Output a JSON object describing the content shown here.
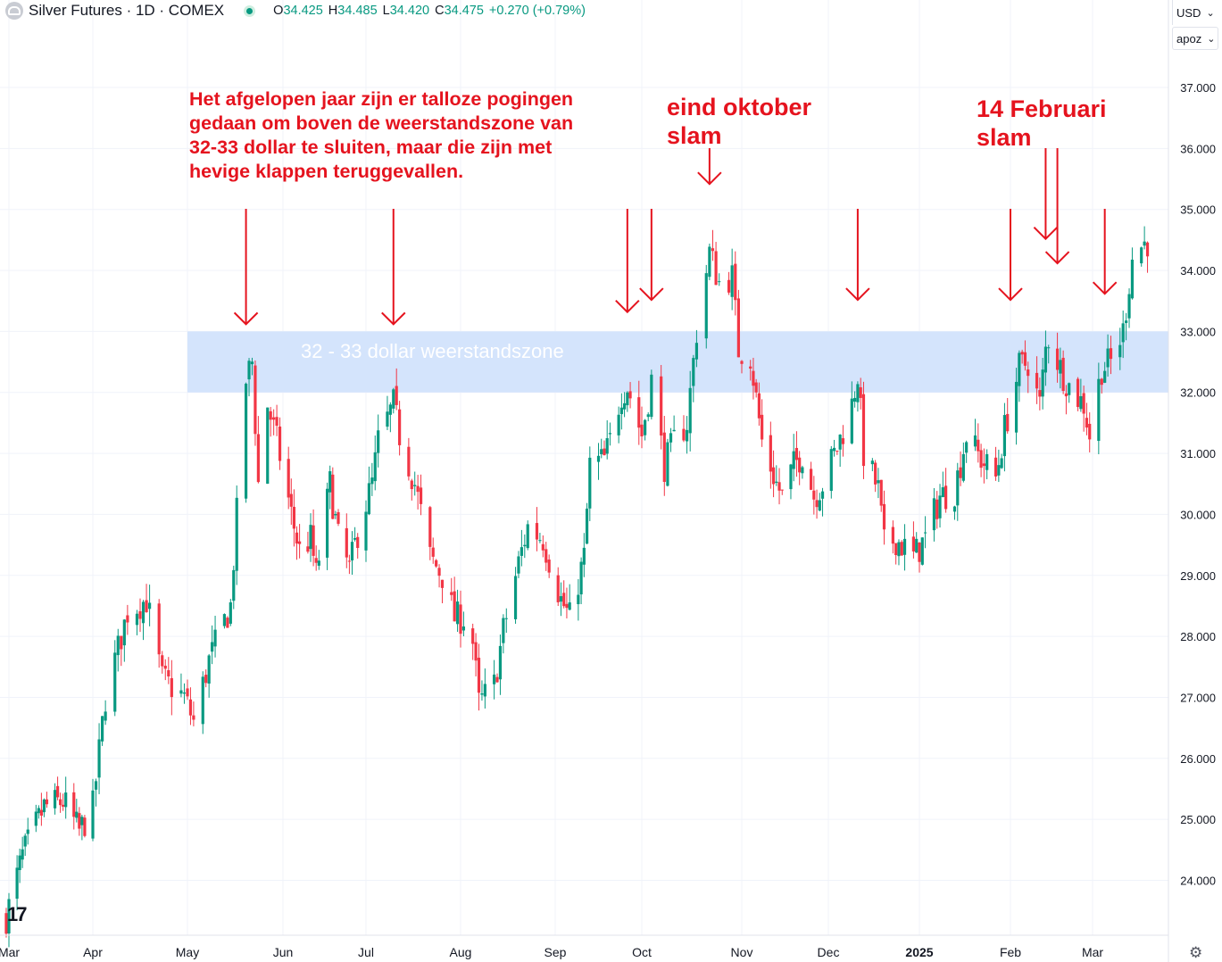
{
  "header": {
    "symbol": "Silver Futures · 1D · COMEX",
    "open_label": "O",
    "open_value": "34.425",
    "high_label": "H",
    "high_value": "34.485",
    "low_label": "L",
    "low_value": "34.420",
    "close_label": "C",
    "close_value": "34.475",
    "change": "+0.270 (+0.79%)"
  },
  "price_scale": {
    "currency": "USD",
    "currency_chevron": "⌄",
    "scale_mode": "apoz",
    "scale_chevron": "⌄"
  },
  "annotations": {
    "main_note": "Het afgelopen jaar zijn er talloze pogingen\ngedaan om boven de weerstandszone van\n32-33 dollar te sluiten, maar die zijn met\nhevige klappen teruggevallen.",
    "october_note": "eind oktober\nslam",
    "february_note": "14 Februari\nslam",
    "zone_label": "32 - 33 dollar weerstandszone"
  },
  "logo_text": "17",
  "settings_icon": "gear-icon",
  "colors": {
    "up": "#089981",
    "down": "#f23645",
    "zone": "#d4e4fc",
    "annotation": "#e5131e",
    "grid": "#f0f3fa"
  },
  "chart_data": {
    "type": "candlestick",
    "title": "",
    "ylim": [
      23.0,
      38.0
    ],
    "y_ticks": [
      "24.000",
      "25.000",
      "26.000",
      "27.000",
      "28.000",
      "29.000",
      "30.000",
      "31.000",
      "32.000",
      "33.000",
      "34.000",
      "35.000",
      "36.000",
      "37.000"
    ],
    "x_labels": [
      "Mar",
      "Apr",
      "May",
      "Jun",
      "Jul",
      "Aug",
      "Sep",
      "Oct",
      "Nov",
      "Dec",
      "2025",
      "Feb",
      "Mar"
    ],
    "resistance_zone": [
      32.0,
      33.0
    ],
    "arrow_targets": [
      [
        "2024-05-20",
        33.0
      ],
      [
        "2024-07-10",
        33.0
      ],
      [
        "2024-09-26",
        33.2
      ],
      [
        "2024-10-04",
        33.4
      ],
      [
        "2024-10-22",
        35.3
      ],
      [
        "2024-12-11",
        33.4
      ],
      [
        "2025-02-01",
        33.4
      ],
      [
        "2025-02-13",
        34.4
      ],
      [
        "2025-02-17",
        34.0
      ],
      [
        "2025-03-05",
        33.5
      ]
    ],
    "waypoints": [
      [
        "2024-02-29",
        23.4
      ],
      [
        "2024-03-06",
        24.4
      ],
      [
        "2024-03-14",
        25.2
      ],
      [
        "2024-03-21",
        25.3
      ],
      [
        "2024-03-27",
        24.8
      ],
      [
        "2024-04-01",
        25.2
      ],
      [
        "2024-04-05",
        27.0
      ],
      [
        "2024-04-12",
        28.4
      ],
      [
        "2024-04-18",
        28.6
      ],
      [
        "2024-04-23",
        27.3
      ],
      [
        "2024-04-30",
        27.0
      ],
      [
        "2024-05-03",
        26.6
      ],
      [
        "2024-05-08",
        27.6
      ],
      [
        "2024-05-15",
        28.5
      ],
      [
        "2024-05-17",
        30.0
      ],
      [
        "2024-05-20",
        32.2
      ],
      [
        "2024-05-22",
        32.5
      ],
      [
        "2024-05-24",
        30.5
      ],
      [
        "2024-05-27",
        31.8
      ],
      [
        "2024-05-30",
        31.2
      ],
      [
        "2024-06-04",
        30.0
      ],
      [
        "2024-06-07",
        29.4
      ],
      [
        "2024-06-11",
        29.6
      ],
      [
        "2024-06-13",
        29.0
      ],
      [
        "2024-06-18",
        30.5
      ],
      [
        "2024-06-21",
        29.6
      ],
      [
        "2024-06-25",
        29.1
      ],
      [
        "2024-06-28",
        29.7
      ],
      [
        "2024-07-03",
        30.5
      ],
      [
        "2024-07-05",
        31.2
      ],
      [
        "2024-07-10",
        31.8
      ],
      [
        "2024-07-12",
        31.3
      ],
      [
        "2024-07-17",
        30.5
      ],
      [
        "2024-07-22",
        29.3
      ],
      [
        "2024-07-26",
        29.0
      ],
      [
        "2024-07-30",
        28.3
      ],
      [
        "2024-08-02",
        28.3
      ],
      [
        "2024-08-05",
        27.9
      ],
      [
        "2024-08-07",
        26.9
      ],
      [
        "2024-08-12",
        27.2
      ],
      [
        "2024-08-15",
        28.1
      ],
      [
        "2024-08-20",
        29.2
      ],
      [
        "2024-08-23",
        29.8
      ],
      [
        "2024-08-28",
        29.6
      ],
      [
        "2024-09-03",
        28.6
      ],
      [
        "2024-09-06",
        28.3
      ],
      [
        "2024-09-11",
        29.3
      ],
      [
        "2024-09-13",
        30.8
      ],
      [
        "2024-09-18",
        30.9
      ],
      [
        "2024-09-20",
        31.2
      ],
      [
        "2024-09-24",
        32.0
      ],
      [
        "2024-09-26",
        32.1
      ],
      [
        "2024-10-01",
        31.3
      ],
      [
        "2024-10-04",
        32.2
      ],
      [
        "2024-10-08",
        30.8
      ],
      [
        "2024-10-11",
        31.2
      ],
      [
        "2024-10-15",
        31.5
      ],
      [
        "2024-10-18",
        33.0
      ],
      [
        "2024-10-22",
        34.3
      ],
      [
        "2024-10-25",
        33.8
      ],
      [
        "2024-10-29",
        33.9
      ],
      [
        "2024-10-31",
        32.7
      ],
      [
        "2024-11-04",
        32.6
      ],
      [
        "2024-11-08",
        31.2
      ],
      [
        "2024-11-13",
        30.5
      ],
      [
        "2024-11-15",
        30.3
      ],
      [
        "2024-11-19",
        30.8
      ],
      [
        "2024-11-22",
        31.0
      ],
      [
        "2024-11-26",
        30.3
      ],
      [
        "2024-11-29",
        30.5
      ],
      [
        "2024-12-04",
        31.1
      ],
      [
        "2024-12-09",
        31.8
      ],
      [
        "2024-12-11",
        32.3
      ],
      [
        "2024-12-13",
        31.0
      ],
      [
        "2024-12-18",
        30.4
      ],
      [
        "2024-12-20",
        29.5
      ],
      [
        "2024-12-24",
        29.6
      ],
      [
        "2024-12-30",
        29.3
      ],
      [
        "2025-01-03",
        29.6
      ],
      [
        "2025-01-08",
        30.3
      ],
      [
        "2025-01-13",
        30.4
      ],
      [
        "2025-01-17",
        31.3
      ],
      [
        "2025-01-22",
        30.9
      ],
      [
        "2025-01-27",
        30.6
      ],
      [
        "2025-01-30",
        31.4
      ],
      [
        "2025-02-04",
        32.4
      ],
      [
        "2025-02-07",
        32.5
      ],
      [
        "2025-02-11",
        31.8
      ],
      [
        "2025-02-13",
        32.7
      ],
      [
        "2025-02-14",
        32.9
      ],
      [
        "2025-02-18",
        32.4
      ],
      [
        "2025-02-21",
        32.1
      ],
      [
        "2025-02-26",
        31.8
      ],
      [
        "2025-02-28",
        31.3
      ],
      [
        "2025-03-04",
        32.4
      ],
      [
        "2025-03-07",
        32.5
      ],
      [
        "2025-03-11",
        33.0
      ],
      [
        "2025-03-14",
        34.2
      ],
      [
        "2025-03-17",
        34.4
      ],
      [
        "2025-03-19",
        34.475
      ]
    ]
  }
}
